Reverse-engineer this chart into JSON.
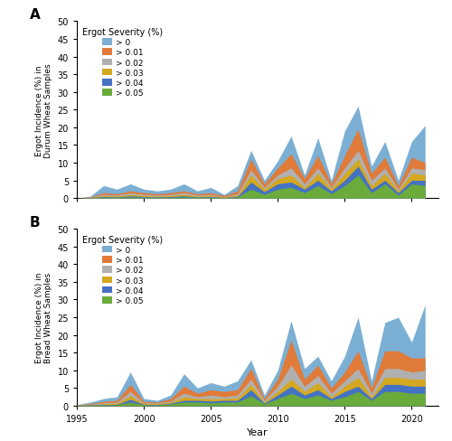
{
  "years": [
    1995,
    1996,
    1997,
    1998,
    1999,
    2000,
    2001,
    2002,
    2003,
    2004,
    2005,
    2006,
    2007,
    2008,
    2009,
    2010,
    2011,
    2012,
    2013,
    2014,
    2015,
    2016,
    2017,
    2018,
    2019,
    2020,
    2021
  ],
  "durum": {
    "gt0": [
      0.0,
      0.5,
      3.5,
      2.5,
      4.0,
      2.5,
      2.0,
      2.5,
      4.0,
      2.0,
      3.0,
      1.0,
      3.5,
      13.5,
      5.0,
      10.5,
      17.5,
      6.5,
      17.0,
      5.0,
      19.0,
      26.0,
      9.0,
      16.0,
      5.0,
      16.0,
      20.5
    ],
    "gt001": [
      0.0,
      0.3,
      1.5,
      1.2,
      2.0,
      1.5,
      1.2,
      1.5,
      2.0,
      1.2,
      1.5,
      0.7,
      2.0,
      11.0,
      4.0,
      8.5,
      12.5,
      5.5,
      12.0,
      4.0,
      12.0,
      19.5,
      7.0,
      11.5,
      3.5,
      11.5,
      10.0
    ],
    "gt002": [
      0.0,
      0.2,
      1.0,
      0.8,
      1.5,
      1.0,
      0.8,
      1.0,
      1.5,
      0.8,
      1.0,
      0.4,
      1.2,
      8.0,
      3.0,
      6.5,
      8.5,
      4.0,
      8.5,
      3.0,
      8.5,
      13.5,
      5.0,
      8.5,
      2.5,
      8.5,
      8.0
    ],
    "gt003": [
      0.0,
      0.15,
      0.7,
      0.5,
      1.0,
      0.7,
      0.5,
      0.7,
      1.0,
      0.5,
      0.7,
      0.3,
      0.8,
      6.5,
      2.5,
      5.5,
      6.5,
      3.0,
      7.0,
      2.5,
      7.0,
      11.0,
      3.5,
      7.0,
      2.0,
      7.0,
      6.5
    ],
    "gt004": [
      0.0,
      0.1,
      0.4,
      0.3,
      0.6,
      0.4,
      0.3,
      0.4,
      0.6,
      0.3,
      0.4,
      0.15,
      0.5,
      4.5,
      1.8,
      4.0,
      4.5,
      2.5,
      5.0,
      2.0,
      5.0,
      9.0,
      2.5,
      5.0,
      1.5,
      5.0,
      5.0
    ],
    "gt005": [
      0.0,
      0.05,
      0.2,
      0.2,
      0.3,
      0.2,
      0.2,
      0.2,
      0.3,
      0.2,
      0.2,
      0.1,
      0.3,
      2.5,
      1.0,
      2.5,
      3.0,
      1.5,
      3.5,
      1.2,
      3.5,
      6.5,
      1.5,
      4.0,
      0.8,
      4.0,
      3.5
    ]
  },
  "bread": {
    "gt0": [
      0.3,
      1.0,
      2.0,
      2.5,
      9.5,
      2.0,
      1.5,
      3.0,
      9.0,
      5.0,
      6.5,
      5.5,
      7.0,
      13.0,
      3.0,
      10.0,
      24.0,
      10.5,
      14.0,
      7.0,
      14.0,
      25.0,
      7.0,
      23.5,
      25.0,
      18.0,
      28.5
    ],
    "gt001": [
      0.2,
      0.6,
      1.2,
      1.5,
      6.0,
      1.2,
      1.0,
      2.0,
      5.5,
      3.5,
      4.5,
      4.0,
      4.5,
      10.5,
      2.0,
      7.5,
      18.5,
      7.5,
      11.5,
      5.0,
      9.5,
      15.5,
      5.0,
      15.5,
      15.5,
      13.5,
      13.5
    ],
    "gt002": [
      0.15,
      0.4,
      0.8,
      1.0,
      4.0,
      0.8,
      0.7,
      1.3,
      3.5,
      2.5,
      3.0,
      2.5,
      3.0,
      7.5,
      1.5,
      5.5,
      11.5,
      5.5,
      8.5,
      3.5,
      7.0,
      10.5,
      3.5,
      10.5,
      10.5,
      9.5,
      10.0
    ],
    "gt003": [
      0.1,
      0.3,
      0.5,
      0.7,
      2.8,
      0.6,
      0.5,
      1.0,
      2.5,
      2.0,
      2.0,
      2.0,
      2.2,
      6.0,
      1.0,
      4.0,
      7.5,
      4.0,
      6.5,
      2.5,
      5.5,
      8.0,
      2.5,
      8.0,
      8.0,
      7.5,
      7.5
    ],
    "gt004": [
      0.07,
      0.2,
      0.3,
      0.4,
      1.8,
      0.4,
      0.3,
      0.7,
      1.5,
      1.5,
      1.3,
      1.5,
      1.5,
      4.5,
      0.7,
      3.0,
      5.5,
      3.0,
      4.5,
      2.0,
      4.0,
      5.5,
      2.0,
      6.0,
      6.0,
      5.5,
      5.5
    ],
    "gt005": [
      0.03,
      0.15,
      0.2,
      0.3,
      1.0,
      0.3,
      0.2,
      0.5,
      1.0,
      1.0,
      0.8,
      1.0,
      1.0,
      2.8,
      0.5,
      2.0,
      3.5,
      2.0,
      3.0,
      1.5,
      2.5,
      4.0,
      1.5,
      4.0,
      4.0,
      3.5,
      3.5
    ]
  },
  "colors": {
    "gt0": "#7BAFD4",
    "gt001": "#E07B39",
    "gt002": "#B0B0B0",
    "gt003": "#D4A820",
    "gt004": "#4472C4",
    "gt005": "#6AAB3C"
  },
  "legend_labels": [
    "> 0",
    "> 0.01",
    "> 0.02",
    "> 0.03",
    "> 0.04",
    "> 0.05"
  ],
  "legend_title": "Ergot Severity (%)",
  "ylabel_a": "Ergot Incidence (%) in\nDurum Wheat Samples",
  "ylabel_b": "Ergot Incidence (%) in\nBread Wheat Samples",
  "xlabel": "Year",
  "ylim": [
    0,
    50
  ],
  "yticks": [
    0,
    5,
    10,
    15,
    20,
    25,
    30,
    35,
    40,
    45,
    50
  ],
  "xlim": [
    1995,
    2022
  ],
  "xticks": [
    1995,
    2000,
    2005,
    2010,
    2015,
    2020
  ],
  "label_a": "A",
  "label_b": "B"
}
